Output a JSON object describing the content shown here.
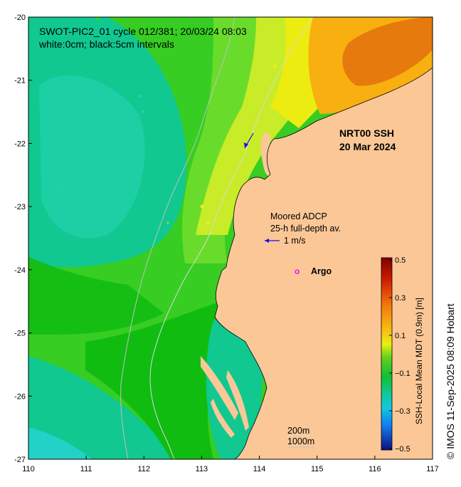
{
  "title": {
    "line1": "SWOT-PIC2_01 cycle 012/381; 20/03/24 08:03",
    "line2": "white:0cm; black:5cm intervals"
  },
  "product": {
    "line1": "NRT00 SSH",
    "line2": "20 Mar 2024"
  },
  "adcp": {
    "line1": "Moored ADCP",
    "line2": "25-h full-depth av.",
    "scale_label": "1 m/s"
  },
  "argo": {
    "marker": "o",
    "label": "Argo"
  },
  "isobaths": {
    "shallow": "200m",
    "deep": "1000m"
  },
  "credit": "© IMOS 11-Sep-2025 08:09 Hobart",
  "axes": {
    "x_ticks": [
      "110",
      "111",
      "112",
      "113",
      "114",
      "115",
      "116",
      "117"
    ],
    "y_ticks": [
      "-20",
      "-21",
      "-22",
      "-23",
      "-24",
      "-25",
      "-26",
      "-27"
    ]
  },
  "colorbar": {
    "label": "SSH-Local Mean MDT (0.9m) [m]",
    "range": [
      -0.5,
      0.5
    ],
    "ticks": [
      "0.5",
      "0.3",
      "0.1",
      "−0.1",
      "−0.3",
      "−0.5"
    ]
  },
  "colors": {
    "land": "#fbc797",
    "green_dark": "#10bc10",
    "green_mid": "#37cd23",
    "green_light": "#69dc2b",
    "teal": "#10c890",
    "teal_light": "#22d2b6",
    "yellow_green": "#c8ec28",
    "yellow": "#ecec10",
    "orange": "#f4a010",
    "orange_dark": "#e67a0c",
    "vector": "#1010dd",
    "argo": "#ff00ff"
  }
}
